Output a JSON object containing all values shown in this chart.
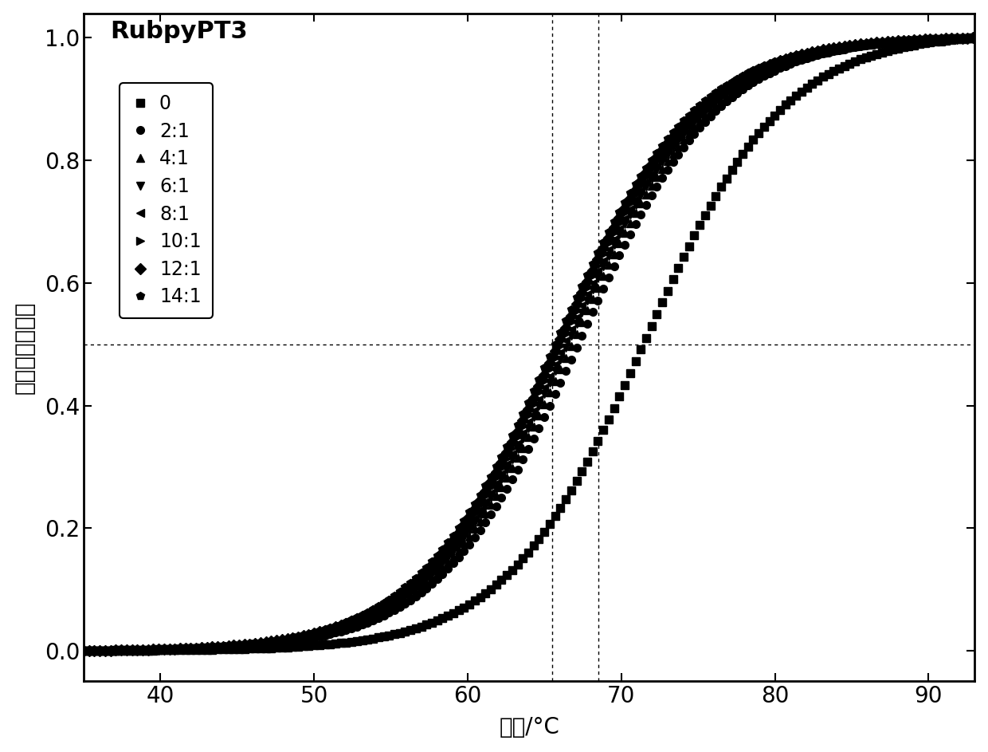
{
  "title": "RubpyPT3",
  "xlabel": "温度/°C",
  "ylabel": "归一化荧光高度",
  "xlim": [
    35,
    93
  ],
  "ylim": [
    -0.05,
    1.04
  ],
  "xticks": [
    40,
    50,
    60,
    70,
    80,
    90
  ],
  "yticks": [
    0.0,
    0.2,
    0.4,
    0.6,
    0.8,
    1.0
  ],
  "series": [
    {
      "label": "0",
      "marker": "s",
      "Tm": 71.5,
      "k": 0.22
    },
    {
      "label": "2:1",
      "marker": "o",
      "Tm": 67.2,
      "k": 0.22
    },
    {
      "label": "4:1",
      "marker": "^",
      "Tm": 66.8,
      "k": 0.22
    },
    {
      "label": "6:1",
      "marker": "v",
      "Tm": 66.5,
      "k": 0.22
    },
    {
      "label": "8:1",
      "marker": "<",
      "Tm": 66.3,
      "k": 0.22
    },
    {
      "label": "10:1",
      "marker": ">",
      "Tm": 66.1,
      "k": 0.22
    },
    {
      "label": "12:1",
      "marker": "D",
      "Tm": 65.9,
      "k": 0.22
    },
    {
      "label": "14:1",
      "marker": "p",
      "Tm": 65.7,
      "k": 0.22
    }
  ],
  "hline_y": 0.5,
  "vline_x1": 65.5,
  "vline_x2": 68.5,
  "color": "#000000",
  "markersize": 7,
  "markevery": 3,
  "background": "#ffffff"
}
